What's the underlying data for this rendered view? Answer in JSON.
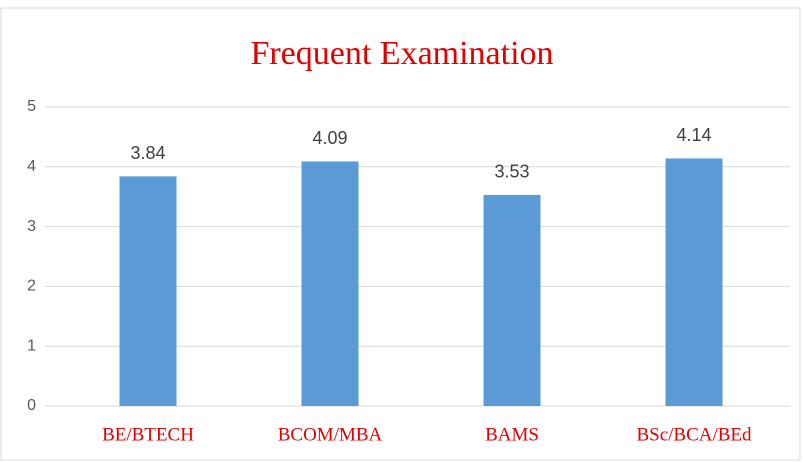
{
  "chart_data": {
    "type": "bar",
    "title": "Frequent Examination",
    "categories": [
      "BE/BTECH",
      "BCOM/MBA",
      "BAMS",
      "BSc/BCA/BEd"
    ],
    "values": [
      3.84,
      4.09,
      3.53,
      4.14
    ],
    "color": "#5b9bd5",
    "ylim": [
      0,
      5
    ],
    "yticks": [
      0,
      1,
      2,
      3,
      4,
      5
    ],
    "grid": true
  }
}
